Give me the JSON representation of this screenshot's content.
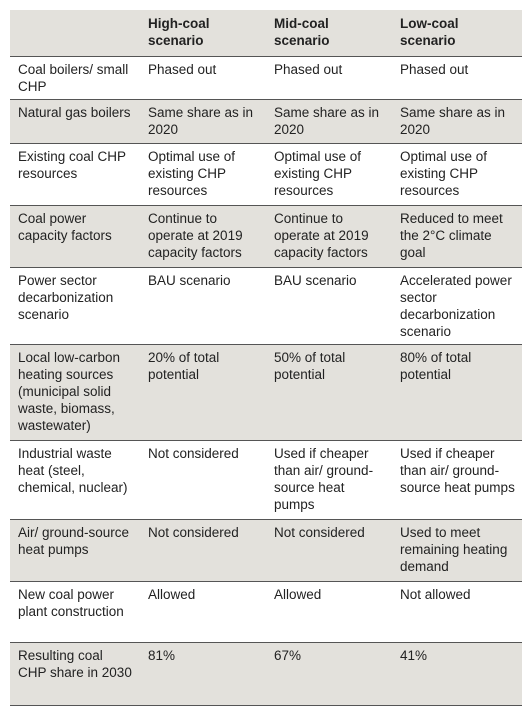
{
  "table": {
    "header": [
      "High-coal scenario",
      "Mid-coal scenario",
      "Low-coal scenario"
    ],
    "rows": [
      [
        "Coal boilers/ small CHP",
        "Phased out",
        "Phased out",
        "Phased out"
      ],
      [
        "Natural gas boilers",
        "Same share as in 2020",
        "Same share as in 2020",
        "Same share as in 2020"
      ],
      [
        "Existing coal CHP resources",
        "Optimal use of existing CHP resources",
        "Optimal use of existing CHP resources",
        "Optimal use of existing CHP resources"
      ],
      [
        "Coal power capacity factors",
        "Continue to operate at 2019 capacity factors",
        "Continue to operate at 2019 capacity factors",
        "Reduced to meet the 2°C climate goal"
      ],
      [
        "Power sector decarbonization scenario",
        "BAU scenario",
        "BAU scenario",
        "Accelerated power sector decarbonization scenario"
      ],
      [
        "Local low-carbon heating sources (municipal solid waste, biomass, wastewater)",
        "20% of total potential",
        "50% of total potential",
        "80% of total potential"
      ],
      [
        "Industrial waste heat (steel, chemical, nuclear)",
        "Not considered",
        "Used if cheaper than air/ ground-source heat pumps",
        "Used if cheaper than air/ ground-source heat pumps"
      ],
      [
        "Air/ ground-source heat pumps",
        "Not considered",
        "Not considered",
        "Used to meet remaining heating demand"
      ],
      [
        "New coal power plant construction",
        "Allowed",
        "Allowed",
        "Not allowed"
      ],
      [
        "Resulting coal CHP share in 2030",
        "81%",
        "67%",
        "41%"
      ]
    ]
  }
}
